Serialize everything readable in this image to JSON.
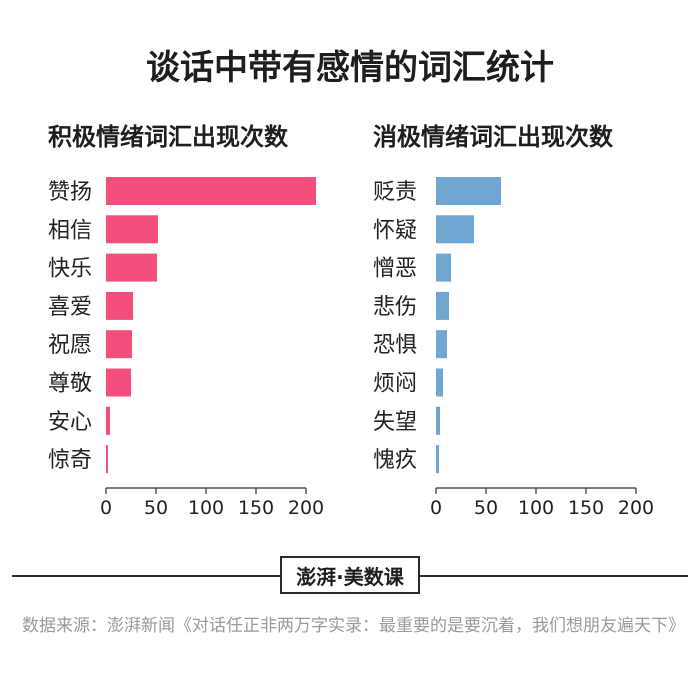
{
  "title": "谈话中带有感情的词汇统计",
  "chart_data": [
    {
      "type": "bar",
      "orientation": "horizontal",
      "title": "积极情绪词汇出现次数",
      "categories": [
        "赞扬",
        "相信",
        "快乐",
        "喜爱",
        "祝愿",
        "尊敬",
        "安心",
        "惊奇"
      ],
      "values": [
        210,
        52,
        51,
        27,
        26,
        25,
        4,
        2
      ],
      "xlim": [
        0,
        200
      ],
      "xticks": [
        "0",
        "50",
        "100",
        "150",
        "200"
      ],
      "color": "#f24f7c"
    },
    {
      "type": "bar",
      "orientation": "horizontal",
      "title": "消极情绪词汇出现次数",
      "categories": [
        "贬责",
        "怀疑",
        "憎恶",
        "悲伤",
        "恐惧",
        "烦闷",
        "失望",
        "愧疚"
      ],
      "values": [
        65,
        38,
        15,
        13,
        11,
        7,
        4,
        3
      ],
      "xlim": [
        0,
        200
      ],
      "xticks": [
        "0",
        "50",
        "100",
        "150",
        "200"
      ],
      "color": "#6fa6d2"
    }
  ],
  "brand": "澎湃·美数课",
  "source": "数据来源：澎湃新闻《对话任正非两万字实录：最重要的是要沉着，我们想朋友遍天下》"
}
